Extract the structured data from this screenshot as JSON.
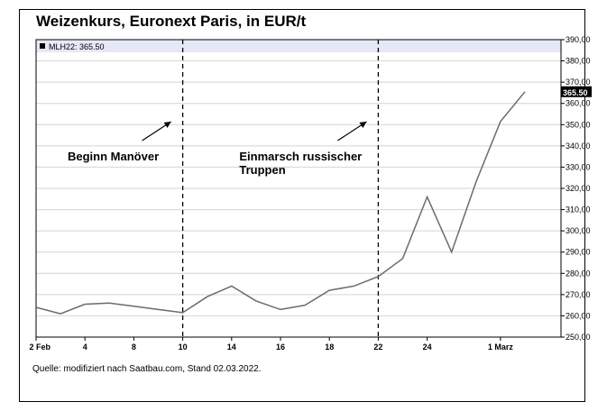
{
  "chart_data": {
    "type": "line",
    "title": "Weizenkurs, Euronext Paris, in EUR/t",
    "legend_label": "MLH22: 365.50",
    "last_value_label": "365.50",
    "source": "Quelle: modifiziert nach Saatbau.com, Stand 02.03.2022.",
    "ylim": [
      250,
      390
    ],
    "y_ticks": [
      "250,00",
      "260,00",
      "270,00",
      "280,00",
      "290,00",
      "300,00",
      "310,00",
      "320,00",
      "330,00",
      "340,00",
      "350,00",
      "360,00",
      "370,00",
      "380,00",
      "390,00"
    ],
    "x_tick_labels": [
      "2 Feb",
      "4",
      "8",
      "10",
      "14",
      "16",
      "18",
      "22",
      "24",
      "1 Marz"
    ],
    "series": [
      {
        "x": [
          "2022-02-02",
          "2022-02-03",
          "2022-02-04",
          "2022-02-07",
          "2022-02-08",
          "2022-02-09",
          "2022-02-10",
          "2022-02-11",
          "2022-02-14",
          "2022-02-15",
          "2022-02-16",
          "2022-02-17",
          "2022-02-18",
          "2022-02-21",
          "2022-02-22",
          "2022-02-23",
          "2022-02-24",
          "2022-02-25",
          "2022-02-28",
          "2022-03-01",
          "2022-03-02"
        ],
        "values": [
          264.0,
          261.0,
          265.5,
          266.0,
          264.5,
          263.0,
          261.5,
          269.0,
          274.0,
          267.0,
          263.0,
          265.0,
          272.0,
          274.0,
          278.5,
          287.0,
          316.0,
          290.0,
          323.0,
          351.5,
          365.5
        ]
      }
    ],
    "annotations": [
      {
        "date": "2022-02-10",
        "lines": [
          "Beginn Manöver"
        ]
      },
      {
        "date": "2022-02-22",
        "lines": [
          "Einmarsch russischer",
          "Truppen"
        ]
      }
    ],
    "colors": {
      "line": "#6b6b6b",
      "legend_band": "#e6e8f7",
      "grid": "#d4d4d4",
      "frame": "#000000"
    }
  }
}
